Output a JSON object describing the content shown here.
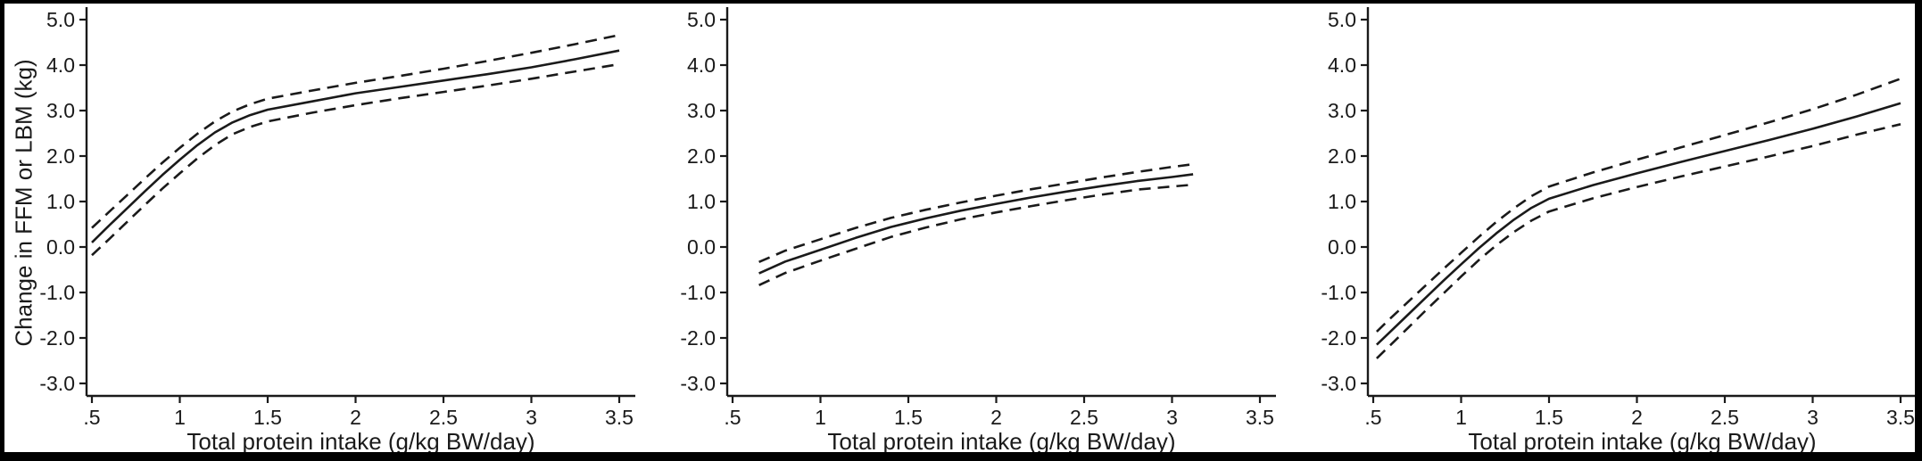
{
  "figure": {
    "background": "#ffffff",
    "frame_color": "#000000",
    "line_color": "#1a1a1a"
  },
  "shared": {
    "xlabel": "Total protein intake (g/kg BW/day)",
    "ylabel": "Change in FFM or LBM (kg)",
    "x_ticks": [
      ".5",
      "1",
      "1.5",
      "2",
      "2.5",
      "3",
      "3.5"
    ],
    "x_tick_values": [
      0.5,
      1,
      1.5,
      2,
      2.5,
      3,
      3.5
    ],
    "y_ticks": [
      "5.0",
      "4.0",
      "3.0",
      "2.0",
      "1.0",
      "0.0",
      "-1.0",
      "-2.0",
      "-3.0"
    ],
    "y_tick_values": [
      5,
      4,
      3,
      2,
      1,
      0,
      -1,
      -2,
      -3
    ],
    "xlim": [
      0.35,
      3.62
    ],
    "ylim": [
      -3.4,
      5.3
    ],
    "legend": "none",
    "grid": false
  },
  "chart_data": [
    {
      "type": "line",
      "panel": "left",
      "title": "",
      "xlabel": "Total protein intake (g/kg BW/day)",
      "ylabel": "Change in FFM or LBM (kg)",
      "series": [
        {
          "name": "Estimate",
          "style": "solid",
          "x": [
            0.5,
            0.6,
            0.7,
            0.8,
            0.9,
            1.0,
            1.1,
            1.2,
            1.3,
            1.4,
            1.5,
            1.75,
            2.0,
            2.25,
            2.5,
            2.75,
            3.0,
            3.25,
            3.5
          ],
          "y": [
            0.1,
            0.48,
            0.85,
            1.22,
            1.58,
            1.92,
            2.24,
            2.52,
            2.74,
            2.9,
            3.02,
            3.2,
            3.38,
            3.52,
            3.66,
            3.8,
            3.95,
            4.13,
            4.32
          ]
        },
        {
          "name": "Upper 95% CI",
          "style": "dashed",
          "x": [
            0.5,
            0.6,
            0.7,
            0.8,
            0.9,
            1.0,
            1.1,
            1.2,
            1.3,
            1.4,
            1.5,
            1.75,
            2.0,
            2.25,
            2.5,
            2.75,
            3.0,
            3.25,
            3.5
          ],
          "y": [
            0.42,
            0.78,
            1.14,
            1.5,
            1.85,
            2.18,
            2.49,
            2.76,
            2.98,
            3.14,
            3.26,
            3.44,
            3.61,
            3.76,
            3.92,
            4.09,
            4.27,
            4.46,
            4.66
          ]
        },
        {
          "name": "Lower 95% CI",
          "style": "dashed",
          "x": [
            0.5,
            0.6,
            0.7,
            0.8,
            0.9,
            1.0,
            1.1,
            1.2,
            1.3,
            1.4,
            1.5,
            1.75,
            2.0,
            2.25,
            2.5,
            2.75,
            3.0,
            3.25,
            3.5
          ],
          "y": [
            -0.18,
            0.18,
            0.55,
            0.92,
            1.28,
            1.62,
            1.95,
            2.24,
            2.48,
            2.64,
            2.76,
            2.95,
            3.12,
            3.27,
            3.41,
            3.55,
            3.7,
            3.86,
            4.02
          ]
        }
      ]
    },
    {
      "type": "line",
      "panel": "middle",
      "title": "",
      "xlabel": "Total protein intake (g/kg BW/day)",
      "ylabel": "",
      "series": [
        {
          "name": "Estimate",
          "style": "solid",
          "x": [
            0.65,
            0.8,
            1.0,
            1.2,
            1.4,
            1.6,
            1.8,
            2.0,
            2.2,
            2.4,
            2.6,
            2.8,
            3.0,
            3.12
          ],
          "y": [
            -0.58,
            -0.32,
            -0.06,
            0.2,
            0.44,
            0.63,
            0.8,
            0.95,
            1.09,
            1.22,
            1.34,
            1.45,
            1.54,
            1.6
          ]
        },
        {
          "name": "Upper 95% CI",
          "style": "dashed",
          "x": [
            0.65,
            0.8,
            1.0,
            1.2,
            1.4,
            1.6,
            1.8,
            2.0,
            2.2,
            2.4,
            2.6,
            2.8,
            3.0,
            3.12
          ],
          "y": [
            -0.33,
            -0.08,
            0.17,
            0.42,
            0.64,
            0.82,
            0.98,
            1.13,
            1.27,
            1.4,
            1.53,
            1.65,
            1.76,
            1.82
          ]
        },
        {
          "name": "Lower 95% CI",
          "style": "dashed",
          "x": [
            0.65,
            0.8,
            1.0,
            1.2,
            1.4,
            1.6,
            1.8,
            2.0,
            2.2,
            2.4,
            2.6,
            2.8,
            3.0,
            3.12
          ],
          "y": [
            -0.84,
            -0.57,
            -0.3,
            -0.04,
            0.22,
            0.43,
            0.61,
            0.76,
            0.9,
            1.03,
            1.15,
            1.26,
            1.33,
            1.37
          ]
        }
      ]
    },
    {
      "type": "line",
      "panel": "right",
      "title": "",
      "xlabel": "Total protein intake (g/kg BW/day)",
      "ylabel": "",
      "series": [
        {
          "name": "Estimate",
          "style": "solid",
          "x": [
            0.52,
            0.6,
            0.7,
            0.8,
            0.9,
            1.0,
            1.1,
            1.2,
            1.3,
            1.4,
            1.5,
            1.75,
            2.0,
            2.25,
            2.5,
            2.75,
            3.0,
            3.25,
            3.5
          ],
          "y": [
            -2.15,
            -1.85,
            -1.48,
            -1.11,
            -0.74,
            -0.38,
            -0.03,
            0.3,
            0.6,
            0.86,
            1.06,
            1.36,
            1.62,
            1.87,
            2.11,
            2.35,
            2.6,
            2.87,
            3.16
          ]
        },
        {
          "name": "Upper 95% CI",
          "style": "dashed",
          "x": [
            0.52,
            0.6,
            0.7,
            0.8,
            0.9,
            1.0,
            1.1,
            1.2,
            1.3,
            1.4,
            1.5,
            1.75,
            2.0,
            2.25,
            2.5,
            2.75,
            3.0,
            3.25,
            3.5
          ],
          "y": [
            -1.86,
            -1.56,
            -1.2,
            -0.84,
            -0.48,
            -0.13,
            0.22,
            0.55,
            0.85,
            1.12,
            1.33,
            1.64,
            1.92,
            2.19,
            2.46,
            2.74,
            3.03,
            3.35,
            3.7
          ]
        },
        {
          "name": "Lower 95% CI",
          "style": "dashed",
          "x": [
            0.52,
            0.6,
            0.7,
            0.8,
            0.9,
            1.0,
            1.1,
            1.2,
            1.3,
            1.4,
            1.5,
            1.75,
            2.0,
            2.25,
            2.5,
            2.75,
            3.0,
            3.25,
            3.5
          ],
          "y": [
            -2.45,
            -2.15,
            -1.77,
            -1.39,
            -1.02,
            -0.65,
            -0.29,
            0.04,
            0.33,
            0.58,
            0.78,
            1.07,
            1.32,
            1.55,
            1.77,
            1.99,
            2.22,
            2.47,
            2.7
          ]
        }
      ]
    }
  ]
}
